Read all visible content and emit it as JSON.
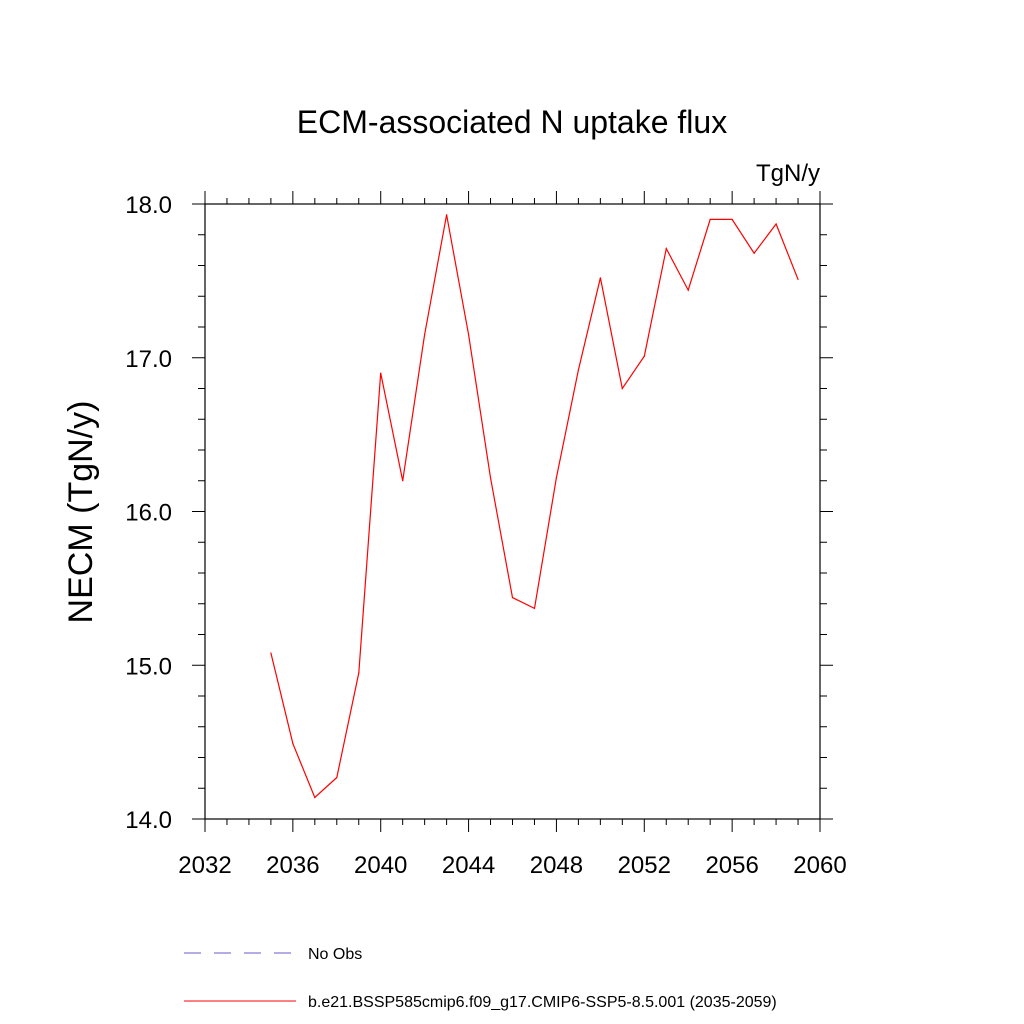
{
  "chart_data": {
    "type": "line",
    "title": "ECM-associated N uptake flux",
    "units_label": "TgN/y",
    "xlabel": "",
    "ylabel": "NECM  (TgN/y)",
    "xlim": [
      2032,
      2060
    ],
    "ylim": [
      14.0,
      18.0
    ],
    "x_ticks": [
      2032,
      2036,
      2040,
      2044,
      2048,
      2052,
      2056,
      2060
    ],
    "x_tick_labels": [
      "2032",
      "2036",
      "2040",
      "2044",
      "2048",
      "2052",
      "2056",
      "2060"
    ],
    "y_ticks": [
      14.0,
      15.0,
      16.0,
      17.0,
      18.0
    ],
    "y_tick_labels": [
      "14.0",
      "15.0",
      "16.0",
      "17.0",
      "18.0"
    ],
    "grid": false,
    "legend_position": "bottom",
    "series": [
      {
        "name": "b.e21.BSSP585cmip6.f09_g17.CMIP6-SSP5-8.5.001 (2035-2059)",
        "color": "#ff0000",
        "dash": "solid",
        "x": [
          2035,
          2036,
          2037,
          2038,
          2039,
          2040,
          2041,
          2042,
          2043,
          2044,
          2045,
          2046,
          2047,
          2048,
          2049,
          2050,
          2051,
          2052,
          2053,
          2054,
          2055,
          2056,
          2057,
          2058,
          2059
        ],
        "y": [
          15.08,
          14.49,
          14.14,
          14.27,
          14.95,
          16.9,
          16.2,
          17.15,
          17.93,
          17.15,
          16.22,
          15.44,
          15.37,
          16.22,
          16.92,
          17.52,
          16.8,
          17.01,
          17.71,
          17.44,
          17.9,
          17.9,
          17.68,
          17.87,
          17.51
        ]
      }
    ],
    "legend": [
      {
        "label": "No Obs",
        "color": "#6a5acd",
        "dash": "dashed"
      },
      {
        "label": "b.e21.BSSP585cmip6.f09_g17.CMIP6-SSP5-8.5.001 (2035-2059)",
        "color": "#ff0000",
        "dash": "solid"
      }
    ]
  }
}
